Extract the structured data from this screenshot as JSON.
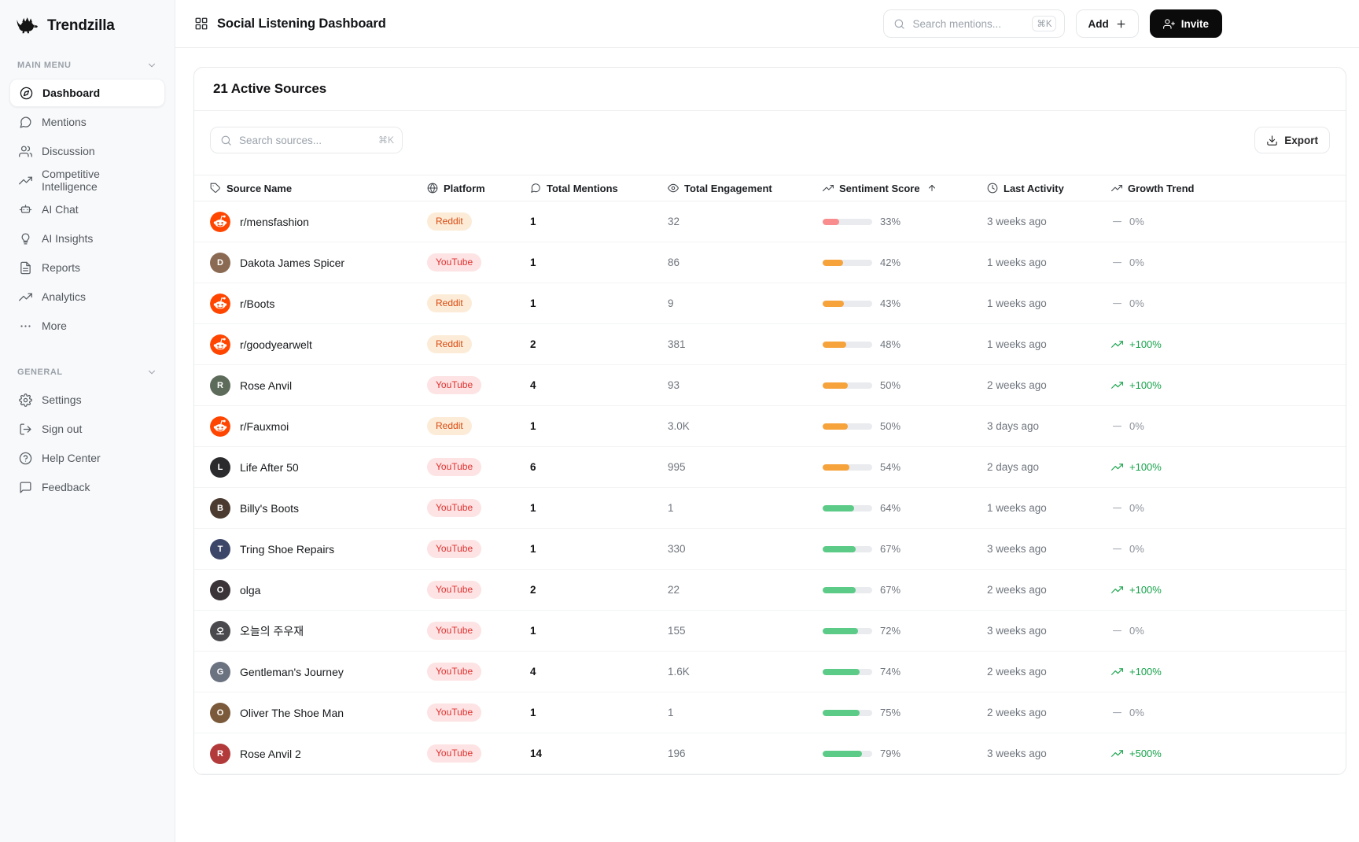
{
  "brand": {
    "name": "Trendzilla"
  },
  "topbar": {
    "title": "Social Listening Dashboard",
    "search": {
      "placeholder": "Search mentions...",
      "shortcut": "⌘K"
    },
    "add_button": {
      "label": "Add"
    },
    "invite_button": {
      "label": "Invite"
    }
  },
  "sidebar": {
    "sections": [
      {
        "label": "MAIN MENU",
        "items": [
          {
            "label": "Dashboard",
            "icon": "compass",
            "active": true
          },
          {
            "label": "Mentions",
            "icon": "chat-bubble",
            "active": false
          },
          {
            "label": "Discussion",
            "icon": "users",
            "active": false
          },
          {
            "label": "Competitive Intelligence",
            "icon": "trending-up",
            "active": false
          },
          {
            "label": "AI Chat",
            "icon": "bot",
            "active": false
          },
          {
            "label": "AI Insights",
            "icon": "lightbulb",
            "active": false
          },
          {
            "label": "Reports",
            "icon": "document",
            "active": false
          },
          {
            "label": "Analytics",
            "icon": "trending-up",
            "active": false
          },
          {
            "label": "More",
            "icon": "ellipsis",
            "active": false
          }
        ]
      },
      {
        "label": "GENERAL",
        "items": [
          {
            "label": "Settings",
            "icon": "gear",
            "active": false
          },
          {
            "label": "Sign out",
            "icon": "sign-out",
            "active": false
          },
          {
            "label": "Help Center",
            "icon": "help-circle",
            "active": false
          },
          {
            "label": "Feedback",
            "icon": "feedback-bubble",
            "active": false
          }
        ]
      }
    ]
  },
  "panel": {
    "title": "21 Active Sources",
    "search": {
      "placeholder": "Search sources...",
      "shortcut": "⌘K"
    },
    "export_button": {
      "label": "Export"
    },
    "table": {
      "columns": [
        {
          "label": "Source Name",
          "icon": "tag",
          "sorted": false
        },
        {
          "label": "Platform",
          "icon": "globe",
          "sorted": false
        },
        {
          "label": "Total Mentions",
          "icon": "chat-bubble",
          "sorted": false
        },
        {
          "label": "Total Engagement",
          "icon": "eye",
          "sorted": false
        },
        {
          "label": "Sentiment Score",
          "icon": "trending-up",
          "sorted": true
        },
        {
          "label": "Last Activity",
          "icon": "clock",
          "sorted": false
        },
        {
          "label": "Growth Trend",
          "icon": "trending-up",
          "sorted": false
        }
      ],
      "rows": [
        {
          "name": "r/mensfashion",
          "platform": "Reddit",
          "avatar": {
            "kind": "reddit"
          },
          "mentions": "1",
          "engagement": "32",
          "sentiment": 33,
          "tone": "negative",
          "activity": "3 weeks ago",
          "growth": "0%",
          "trend": "flat"
        },
        {
          "name": "Dakota James Spicer",
          "platform": "YouTube",
          "avatar": {
            "kind": "photo",
            "bg": "#8a6a52",
            "initial": "D"
          },
          "mentions": "1",
          "engagement": "86",
          "sentiment": 42,
          "tone": "neutral",
          "activity": "1 weeks ago",
          "growth": "0%",
          "trend": "flat"
        },
        {
          "name": "r/Boots",
          "platform": "Reddit",
          "avatar": {
            "kind": "reddit"
          },
          "mentions": "1",
          "engagement": "9",
          "sentiment": 43,
          "tone": "neutral",
          "activity": "1 weeks ago",
          "growth": "0%",
          "trend": "flat"
        },
        {
          "name": "r/goodyearwelt",
          "platform": "Reddit",
          "avatar": {
            "kind": "reddit"
          },
          "mentions": "2",
          "engagement": "381",
          "sentiment": 48,
          "tone": "neutral",
          "activity": "1 weeks ago",
          "growth": "+100%",
          "trend": "up"
        },
        {
          "name": "Rose Anvil",
          "platform": "YouTube",
          "avatar": {
            "kind": "photo",
            "bg": "#5d6b5a",
            "initial": "R"
          },
          "mentions": "4",
          "engagement": "93",
          "sentiment": 50,
          "tone": "neutral",
          "activity": "2 weeks ago",
          "growth": "+100%",
          "trend": "up"
        },
        {
          "name": "r/Fauxmoi",
          "platform": "Reddit",
          "avatar": {
            "kind": "reddit"
          },
          "mentions": "1",
          "engagement": "3.0K",
          "sentiment": 50,
          "tone": "neutral",
          "activity": "3 days ago",
          "growth": "0%",
          "trend": "flat"
        },
        {
          "name": "Life After 50",
          "platform": "YouTube",
          "avatar": {
            "kind": "photo",
            "bg": "#2b2b2e",
            "initial": "L"
          },
          "mentions": "6",
          "engagement": "995",
          "sentiment": 54,
          "tone": "neutral",
          "activity": "2 days ago",
          "growth": "+100%",
          "trend": "up"
        },
        {
          "name": "Billy's Boots",
          "platform": "YouTube",
          "avatar": {
            "kind": "photo",
            "bg": "#4a3a30",
            "initial": "B"
          },
          "mentions": "1",
          "engagement": "1",
          "sentiment": 64,
          "tone": "positive",
          "activity": "1 weeks ago",
          "growth": "0%",
          "trend": "flat"
        },
        {
          "name": "Tring Shoe Repairs",
          "platform": "YouTube",
          "avatar": {
            "kind": "photo",
            "bg": "#3c4668",
            "initial": "T"
          },
          "mentions": "1",
          "engagement": "330",
          "sentiment": 67,
          "tone": "positive",
          "activity": "3 weeks ago",
          "growth": "0%",
          "trend": "flat"
        },
        {
          "name": "olga",
          "platform": "YouTube",
          "avatar": {
            "kind": "photo",
            "bg": "#3a3338",
            "initial": "O"
          },
          "mentions": "2",
          "engagement": "22",
          "sentiment": 67,
          "tone": "positive",
          "activity": "2 weeks ago",
          "growth": "+100%",
          "trend": "up"
        },
        {
          "name": "오늘의 주우재",
          "platform": "YouTube",
          "avatar": {
            "kind": "photo",
            "bg": "#4a4a4e",
            "initial": "오"
          },
          "mentions": "1",
          "engagement": "155",
          "sentiment": 72,
          "tone": "positive",
          "activity": "3 weeks ago",
          "growth": "0%",
          "trend": "flat"
        },
        {
          "name": "Gentleman's Journey",
          "platform": "YouTube",
          "avatar": {
            "kind": "photo",
            "bg": "#6b7280",
            "initial": "G"
          },
          "mentions": "4",
          "engagement": "1.6K",
          "sentiment": 74,
          "tone": "positive",
          "activity": "2 weeks ago",
          "growth": "+100%",
          "trend": "up"
        },
        {
          "name": "Oliver The Shoe Man",
          "platform": "YouTube",
          "avatar": {
            "kind": "photo",
            "bg": "#7a5a3a",
            "initial": "O"
          },
          "mentions": "1",
          "engagement": "1",
          "sentiment": 75,
          "tone": "positive",
          "activity": "2 weeks ago",
          "growth": "0%",
          "trend": "flat"
        },
        {
          "name": "Rose Anvil 2",
          "platform": "YouTube",
          "avatar": {
            "kind": "photo",
            "bg": "#b33a3a",
            "initial": "R"
          },
          "mentions": "14",
          "engagement": "196",
          "sentiment": 79,
          "tone": "positive",
          "activity": "3 weeks ago",
          "growth": "+500%",
          "trend": "up"
        }
      ]
    }
  },
  "colors": {
    "reddit_badge_bg": "#fcecd7",
    "reddit_badge_text": "#d9480f",
    "youtube_badge_bg": "#fde3e3",
    "youtube_badge_text": "#e03131",
    "sentiment_negative": "#f98c8c",
    "sentiment_neutral": "#f6a33c",
    "sentiment_positive": "#5bcb87",
    "sentiment_track": "#e9ebee",
    "growth_up": "#16a34a",
    "growth_flat": "#8b9199",
    "growth_dash": "#a7adb5",
    "invite_button_bg": "#0b0b0c",
    "reddit_avatar": "#ff4500"
  }
}
